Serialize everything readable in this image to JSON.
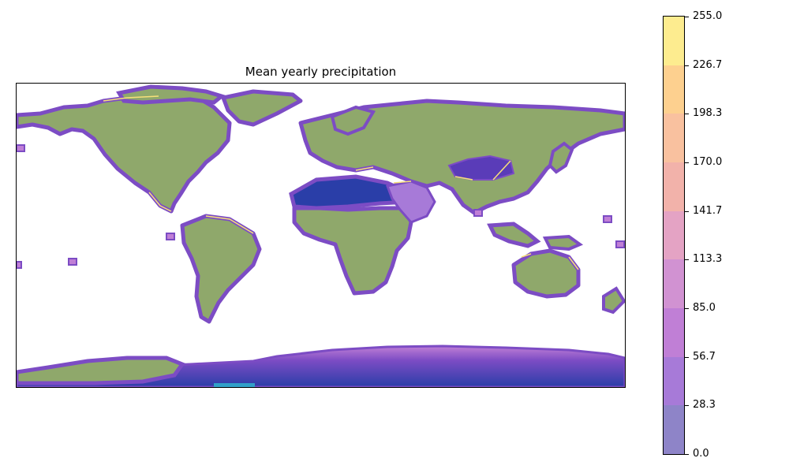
{
  "title": "Mean yearly precipitation",
  "colorbar": {
    "ticks": [
      "0.0",
      "28.3",
      "56.7",
      "85.0",
      "113.3",
      "141.7",
      "170.0",
      "198.3",
      "226.7",
      "255.0"
    ],
    "band_colors": [
      "#8e84c8",
      "#a77ad8",
      "#c07fd6",
      "#d192d2",
      "#e4a3c4",
      "#f2b2aa",
      "#f9c19f",
      "#fdd08f",
      "#fdec8f"
    ]
  },
  "colors": {
    "land": "#8fa86b",
    "coast_purple": "#7c4cc4",
    "coast_yellow": "#f7e07a",
    "deep_water": "#2a3ea8",
    "shallow_water": "#31a0c9"
  }
}
